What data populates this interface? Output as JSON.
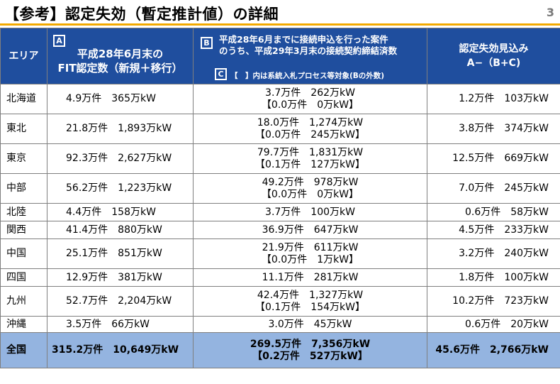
{
  "title": "【参考】認定失効（暫定推計値）の詳細",
  "page_number": "3",
  "header": {
    "area": "エリア",
    "a_letter": "A",
    "a_line1": "平成28年6月末の",
    "a_line2": "FIT認定数（新規＋移行）",
    "b_letter": "B",
    "b_line1": "平成28年6月までに接続申込を行った案件",
    "b_line2": "のうち、平成29年3月末の接続契約締結済数",
    "c_letter": "C",
    "c_note": "【　】内は系統入札プロセス等対象(Bの外数)",
    "d_line1": "認定失効見込み",
    "d_line2": "A−（B+C)"
  },
  "rows": [
    {
      "area": "北海道",
      "a": "4.9万件　365万kW",
      "b": "3.7万件　262万kW",
      "c": "【0.0万件　0万kW】",
      "d": "1.2万件　103万kW"
    },
    {
      "area": "東北",
      "a": "21.8万件　1,893万kW",
      "b": "18.0万件　1,274万kW",
      "c": "【0.0万件　245万kW】",
      "d": "3.8万件　374万kW"
    },
    {
      "area": "東京",
      "a": "92.3万件　2,627万kW",
      "b": "79.7万件　1,831万kW",
      "c": "【0.1万件　127万kW】",
      "d": "12.5万件　669万kW"
    },
    {
      "area": "中部",
      "a": "56.2万件　1,223万kW",
      "b": "49.2万件　978万kW",
      "c": "【0.0万件　0万kW】",
      "d": "7.0万件　245万kW"
    },
    {
      "area": "北陸",
      "a": "4.4万件　158万kW",
      "b": "3.7万件　100万kW",
      "c": "",
      "d": "0.6万件　58万kW"
    },
    {
      "area": "関西",
      "a": "41.4万件　880万kW",
      "b": "36.9万件　647万kW",
      "c": "",
      "d": "4.5万件　233万kW"
    },
    {
      "area": "中国",
      "a": "25.1万件　851万kW",
      "b": "21.9万件　611万kW",
      "c": "【0.0万件　1万kW】",
      "d": "3.2万件　240万kW"
    },
    {
      "area": "四国",
      "a": "12.9万件　381万kW",
      "b": "11.1万件　281万kW",
      "c": "",
      "d": "1.8万件　100万kW"
    },
    {
      "area": "九州",
      "a": "52.7万件　2,204万kW",
      "b": "42.4万件　1,327万kW",
      "c": "【0.1万件　154万kW】",
      "d": "10.2万件　723万kW"
    },
    {
      "area": "沖縄",
      "a": "3.5万件　66万kW",
      "b": "3.0万件　45万kW",
      "c": "",
      "d": "0.6万件　20万kW"
    }
  ],
  "total": {
    "area": "全国",
    "a": "315.2万件　10,649万kW",
    "b": "269.5万件　7,356万kW",
    "c": "【0.2万件　527万kW】",
    "d": "45.6万件　2,766万kW"
  }
}
